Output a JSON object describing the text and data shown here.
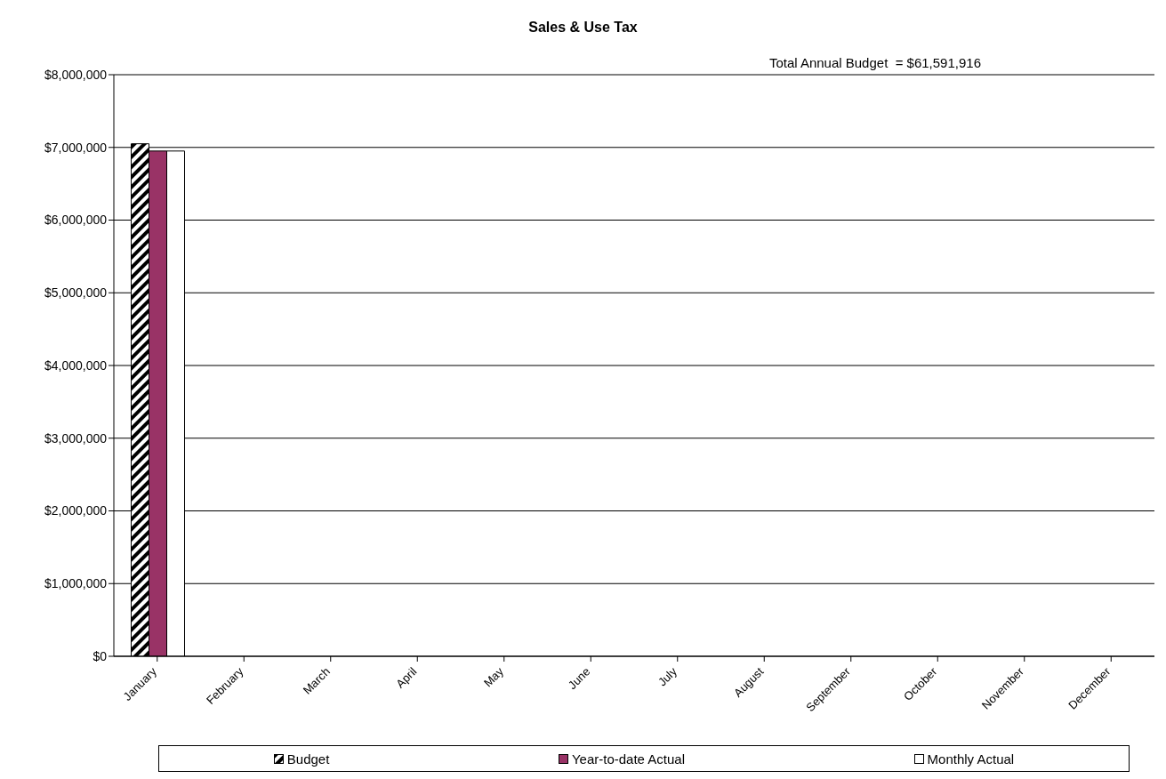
{
  "chart_data": {
    "type": "bar",
    "title": "Sales & Use Tax",
    "categories": [
      "January",
      "February",
      "March",
      "April",
      "May",
      "June",
      "July",
      "August",
      "September",
      "October",
      "November",
      "December"
    ],
    "series": [
      {
        "name": "Budget",
        "color": "#000000",
        "values": [
          7050000,
          null,
          null,
          null,
          null,
          null,
          null,
          null,
          null,
          null,
          null,
          null
        ]
      },
      {
        "name": "Year-to-date Actual",
        "color": "#993366",
        "values": [
          6950000,
          null,
          null,
          null,
          null,
          null,
          null,
          null,
          null,
          null,
          null,
          null
        ]
      },
      {
        "name": "Monthly Actual",
        "color": "#ffffff",
        "values": [
          6950000,
          null,
          null,
          null,
          null,
          null,
          null,
          null,
          null,
          null,
          null,
          null
        ]
      }
    ],
    "ylim": [
      0,
      8000000
    ],
    "yticks": [
      {
        "value": 0,
        "label": "$0"
      },
      {
        "value": 1000000,
        "label": "$1,000,000"
      },
      {
        "value": 2000000,
        "label": "$2,000,000"
      },
      {
        "value": 3000000,
        "label": "$3,000,000"
      },
      {
        "value": 4000000,
        "label": "$4,000,000"
      },
      {
        "value": 5000000,
        "label": "$5,000,000"
      },
      {
        "value": 6000000,
        "label": "$6,000,000"
      },
      {
        "value": 7000000,
        "label": "$7,000,000"
      },
      {
        "value": 8000000,
        "label": "$8,000,000"
      }
    ],
    "grid": "y",
    "legend": "bottom",
    "annotations": [
      "Total Annual Budget  = $61,591,916"
    ]
  }
}
